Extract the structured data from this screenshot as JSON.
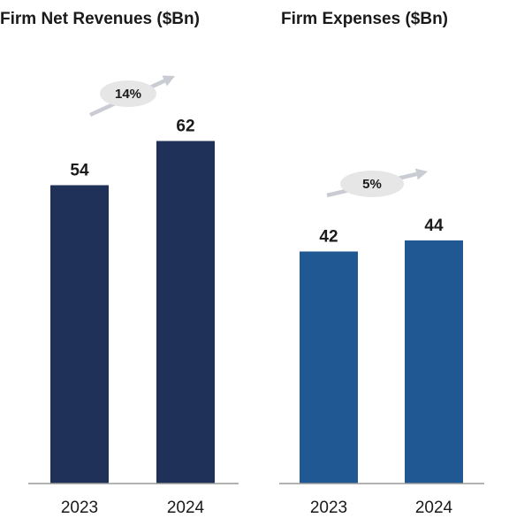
{
  "chart_data": [
    {
      "type": "bar",
      "title": "Firm Net Revenues ($Bn)",
      "categories": [
        "2023",
        "2024"
      ],
      "values": [
        54,
        62
      ],
      "growth_label": "14%",
      "bar_color": "#1f3158",
      "ylim": [
        0,
        80
      ]
    },
    {
      "type": "bar",
      "title": "Firm Expenses ($Bn)",
      "categories": [
        "2023",
        "2024"
      ],
      "values": [
        42,
        44
      ],
      "growth_label": "5%",
      "bar_color": "#1f5893",
      "ylim": [
        0,
        80
      ]
    }
  ],
  "colors": {
    "badge_fill": "#e6e6e6",
    "arrow": "#c9ccd3",
    "axis": "#9a9a9a",
    "text": "#1a1a1a"
  }
}
